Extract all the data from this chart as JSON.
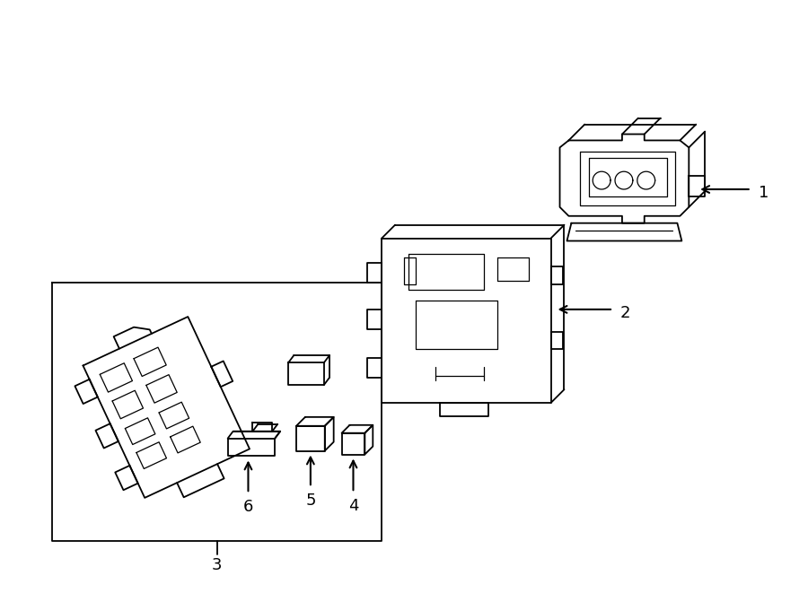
{
  "background_color": "#ffffff",
  "line_color": "#000000",
  "lw": 1.3,
  "tlw": 0.9,
  "fig_width": 9.0,
  "fig_height": 6.61,
  "label_fontsize": 13,
  "label1": "1",
  "label2": "2",
  "label3": "3",
  "label4": "4",
  "label5": "5",
  "label6": "6"
}
